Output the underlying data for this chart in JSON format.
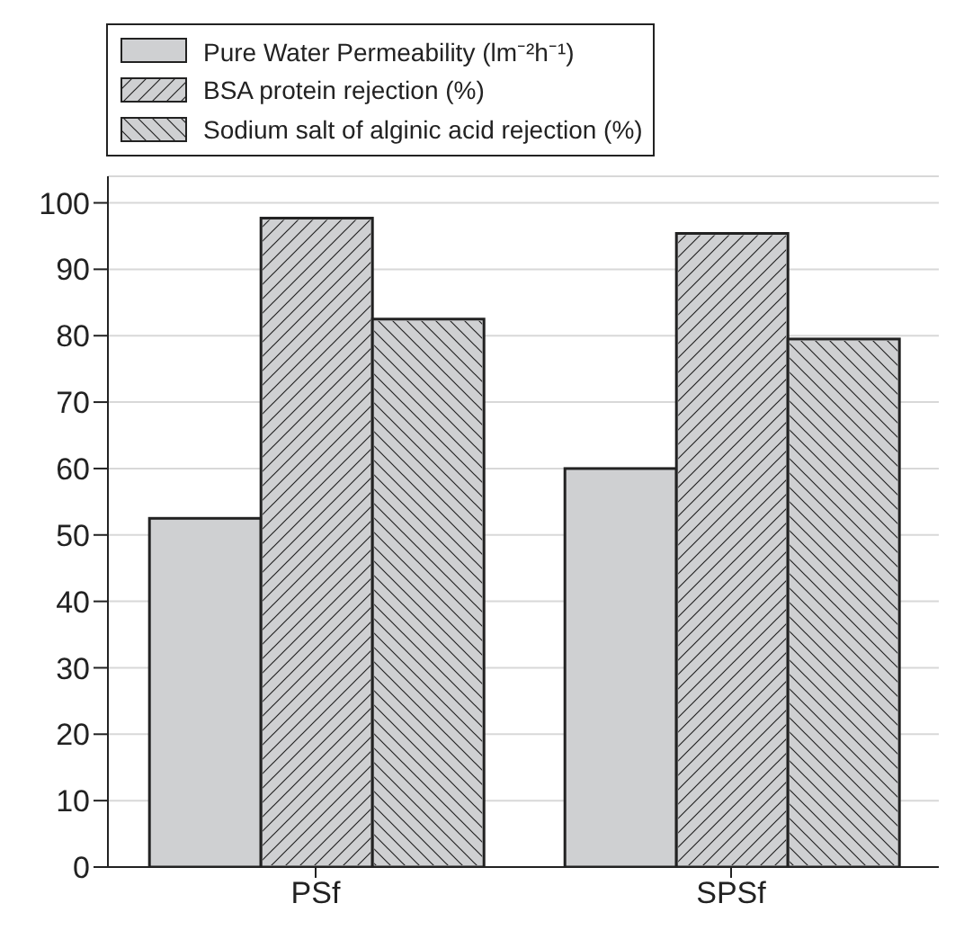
{
  "chart_data": {
    "type": "bar",
    "categories": [
      "PSf",
      "SPSf"
    ],
    "series": [
      {
        "name": "Pure Water Permeability (lm⁻²h⁻¹)",
        "color": "#cfd0d2",
        "values": [
          52.5,
          60
        ]
      },
      {
        "name": "BSA protein rejection (%)",
        "color": "#cfd0d2",
        "values": [
          97.7,
          95.4
        ]
      },
      {
        "name": "Sodium salt of alginic acid rejection (%)",
        "color": "#cfd0d2",
        "values": [
          82.5,
          79.5
        ]
      }
    ],
    "ylim": [
      0,
      104
    ],
    "yticks": [
      0,
      10,
      20,
      30,
      40,
      50,
      60,
      70,
      80,
      90,
      100
    ],
    "grid": "y",
    "legend": "top"
  }
}
